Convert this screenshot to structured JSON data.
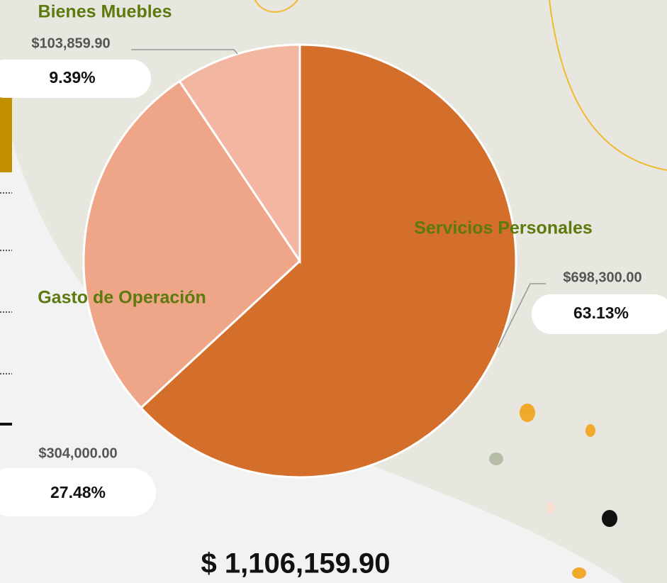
{
  "chart_data": {
    "type": "pie",
    "categories": [
      "Servicios Personales",
      "Gasto de Operación",
      "Bienes Muebles"
    ],
    "values": [
      63.13,
      27.48,
      9.39
    ],
    "value_labels": [
      "63.13%",
      "27.48%",
      "9.39%"
    ],
    "amounts": [
      698300,
      304000,
      103859.9
    ],
    "amount_labels": [
      "$698,300.00",
      "$304,000.00",
      "$103,859.90"
    ],
    "colors": [
      "#d36e2b",
      "#efa587",
      "#f3b6a0"
    ],
    "total": {
      "value": 1106159.9,
      "label": "$ 1,106,159.90"
    }
  }
}
